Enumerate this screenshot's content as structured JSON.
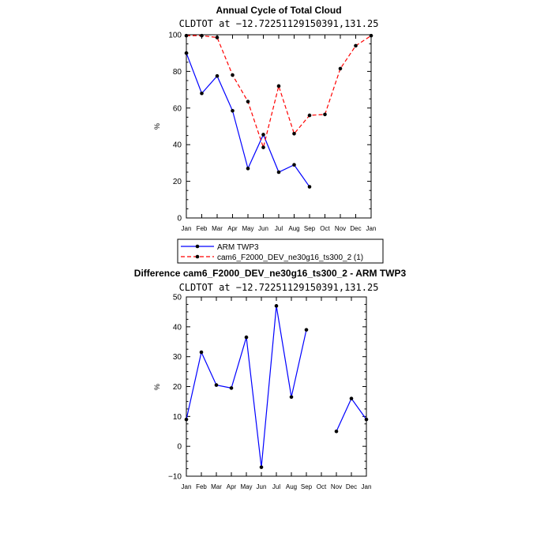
{
  "chart_data": [
    {
      "type": "line",
      "title": "Annual Cycle of Total Cloud",
      "subtitle": "CLDTOT at −12.72251129150391,131.25",
      "ylabel": "%",
      "xlabel": "",
      "ylim": [
        0,
        100
      ],
      "yticks": [
        "0",
        "20",
        "40",
        "60",
        "80",
        "100"
      ],
      "categories": [
        "Jan",
        "Feb",
        "Mar",
        "Apr",
        "May",
        "Jun",
        "Jul",
        "Aug",
        "Sep",
        "Oct",
        "Nov",
        "Dec",
        "Jan"
      ],
      "series": [
        {
          "name": "ARM TWP3",
          "color": "#0000ff",
          "dash": "solid",
          "values": [
            90,
            68,
            77.5,
            58.5,
            27,
            45.5,
            25,
            29,
            17,
            null,
            null,
            null,
            null
          ]
        },
        {
          "name": "cam6_F2000_DEV_ne30g16_ts300_2 (1)",
          "color": "#ff0000",
          "dash": "dashed",
          "values": [
            99.5,
            99.5,
            98.5,
            78,
            63.5,
            38.5,
            72,
            46,
            56,
            56.5,
            81.5,
            94,
            99.5
          ]
        }
      ],
      "legend": "below"
    },
    {
      "type": "line",
      "title": "Difference cam6_F2000_DEV_ne30g16_ts300_2 - ARM TWP3",
      "subtitle": "CLDTOT at −12.72251129150391,131.25",
      "ylabel": "%",
      "xlabel": "",
      "ylim": [
        -10,
        50
      ],
      "yticks": [
        "−10",
        "0",
        "10",
        "20",
        "30",
        "40",
        "50"
      ],
      "categories": [
        "Jan",
        "Feb",
        "Mar",
        "Apr",
        "May",
        "Jun",
        "Jul",
        "Aug",
        "Sep",
        "Oct",
        "Nov",
        "Dec",
        "Jan"
      ],
      "series": [
        {
          "color": "#0000ff",
          "dash": "solid",
          "values": [
            9,
            31.5,
            20.5,
            19.5,
            36.5,
            -7,
            47,
            16.5,
            39,
            null,
            5,
            16,
            9
          ]
        }
      ]
    }
  ]
}
